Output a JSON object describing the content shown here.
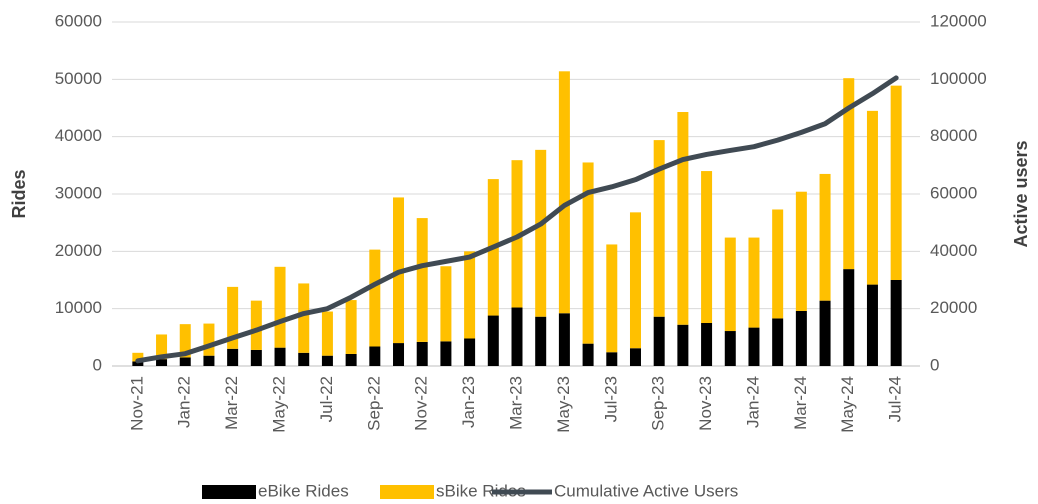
{
  "chart_data": {
    "type": "bar",
    "categories": [
      "Nov-21",
      null,
      "Jan-22",
      null,
      "Mar-22",
      null,
      "May-22",
      null,
      "Jul-22",
      null,
      "Sep-22",
      null,
      "Nov-22",
      null,
      "Jan-23",
      null,
      "Mar-23",
      null,
      "May-23",
      null,
      "Jul-23",
      null,
      "Sep-23",
      null,
      "Nov-23",
      null,
      "Jan-24",
      null,
      "Mar-24",
      null,
      "May-24",
      null,
      "Jul-24"
    ],
    "ylabel": "Rides",
    "y2label": "Active users",
    "ylim": [
      0,
      60000
    ],
    "yticks": [
      0,
      10000,
      20000,
      30000,
      40000,
      50000,
      60000
    ],
    "y2lim": [
      0,
      120000
    ],
    "y2ticks": [
      0,
      20000,
      40000,
      60000,
      80000,
      100000,
      120000
    ],
    "grid": true,
    "stacked": true,
    "legend": "bottom",
    "series": [
      {
        "name": "eBike Rides",
        "color": "#000000",
        "type": "bar",
        "values": [
          800,
          1200,
          1500,
          1800,
          3000,
          2800,
          3200,
          2300,
          1800,
          2100,
          3400,
          4000,
          4200,
          4300,
          4800,
          8800,
          10200,
          8600,
          9200,
          3900,
          2400,
          3100,
          8600,
          7200,
          7500,
          6100,
          6700,
          8300,
          9600,
          11400,
          16900,
          14200,
          15000
        ]
      },
      {
        "name": "sBike Rides",
        "color": "#ffc000",
        "type": "bar",
        "values": [
          1500,
          4300,
          5800,
          5600,
          10800,
          8600,
          14100,
          12100,
          7700,
          9400,
          16900,
          25400,
          21600,
          13100,
          15200,
          23800,
          25700,
          29100,
          42200,
          31600,
          18800,
          23700,
          30800,
          37100,
          26500,
          16300,
          15700,
          19000,
          20800,
          22100,
          33300,
          30300,
          33900
        ]
      },
      {
        "name": "Cumulative Active Users",
        "color": "#404a53",
        "type": "line",
        "axis": "y2",
        "values": [
          1800,
          3200,
          4300,
          7000,
          9800,
          12500,
          15500,
          18300,
          20000,
          24000,
          28500,
          32700,
          35000,
          36500,
          38000,
          41500,
          45000,
          49500,
          56000,
          60500,
          62500,
          65000,
          68700,
          72000,
          73800,
          75200,
          76500,
          78800,
          81500,
          84500,
          90000,
          95000,
          100500
        ]
      }
    ]
  }
}
